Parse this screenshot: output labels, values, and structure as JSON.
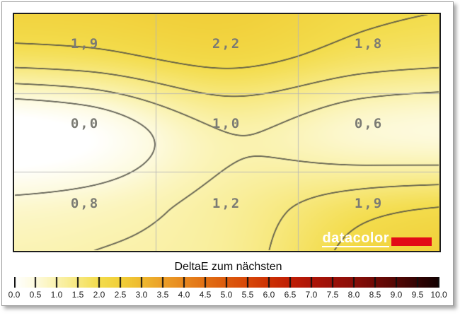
{
  "chart_data": {
    "type": "heatmap",
    "title": "DeltaE zum nächsten",
    "grid": true,
    "rows": 3,
    "cols": 3,
    "values": [
      [
        1.9,
        2.2,
        1.8
      ],
      [
        0.0,
        1.0,
        0.6
      ],
      [
        0.8,
        1.2,
        1.9
      ]
    ],
    "labels": [
      [
        "1,9",
        "2,2",
        "1,8"
      ],
      [
        "0,0",
        "1,0",
        "0,6"
      ],
      [
        "0,8",
        "1,2",
        "1,9"
      ]
    ],
    "contour_levels": [
      0.5,
      1.0,
      1.5,
      2.0
    ],
    "legend_position": "bottom",
    "scale": {
      "min": 0.0,
      "max": 10.0,
      "step": 0.5,
      "tick_labels": [
        "0.0",
        "0.5",
        "1.0",
        "1.5",
        "2.0",
        "2.5",
        "3.0",
        "3.5",
        "4.0",
        "4.5",
        "5.0",
        "5.5",
        "6.0",
        "6.5",
        "7.0",
        "7.5",
        "8.0",
        "8.5",
        "9.0",
        "9.5",
        "10.0"
      ],
      "colors": [
        "#ffffff",
        "#fdfade",
        "#faf2ae",
        "#f7e87e",
        "#f3dc4c",
        "#f1cf39",
        "#eeb92e",
        "#eb9f28",
        "#e7871e",
        "#e16f14",
        "#dc5a0d",
        "#d84708",
        "#cc3104",
        "#c01e05",
        "#ad1407",
        "#9b1008",
        "#8a0e08",
        "#6f0a06",
        "#540705",
        "#320303",
        "#130101"
      ]
    }
  },
  "logo": {
    "text": "datacolor",
    "bar_color": "#e20b17"
  },
  "style_colors": {
    "value_label": "#7b7b74",
    "contour_line": "#4f4e44",
    "grid_line": "#b5b5b5",
    "plot_border": "#1d1d1d"
  }
}
